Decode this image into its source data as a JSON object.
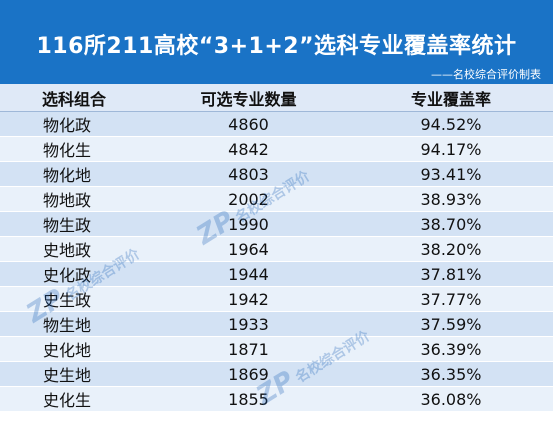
{
  "header": {
    "title": "116所211高校“3+1+2”选科专业覆盖率统计",
    "subtitle": "——名校综合评价制表"
  },
  "table": {
    "columns": [
      "选科组合",
      "可选专业数量",
      "专业覆盖率"
    ],
    "rows": [
      [
        "物化政",
        "4860",
        "94.52%"
      ],
      [
        "物化生",
        "4842",
        "94.17%"
      ],
      [
        "物化地",
        "4803",
        "93.41%"
      ],
      [
        "物地政",
        "2002",
        "38.93%"
      ],
      [
        "物生政",
        "1990",
        "38.70%"
      ],
      [
        "史地政",
        "1964",
        "38.20%"
      ],
      [
        "史化政",
        "1944",
        "37.81%"
      ],
      [
        "史生政",
        "1942",
        "37.77%"
      ],
      [
        "物生地",
        "1933",
        "37.59%"
      ],
      [
        "史化地",
        "1871",
        "36.39%"
      ],
      [
        "史生地",
        "1869",
        "36.35%"
      ],
      [
        "史化生",
        "1855",
        "36.08%"
      ]
    ]
  },
  "watermark": {
    "mark": "ZP",
    "text": "名校综合评价"
  },
  "colors": {
    "banner": "#1a73c6",
    "row_odd": "#d3e2f4",
    "row_even": "#e9f1fa",
    "header_row": "#dfe9f7"
  }
}
